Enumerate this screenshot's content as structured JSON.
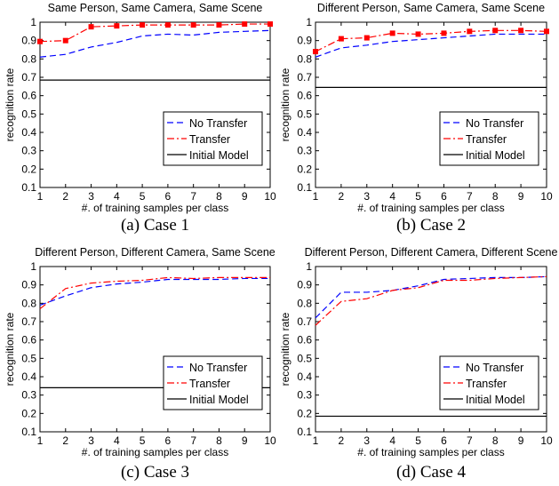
{
  "colors": {
    "no_transfer": "#0000ff",
    "transfer": "#ff0000",
    "initial_model": "#000000",
    "axis": "#000000"
  },
  "chart_data": [
    {
      "type": "line",
      "title": "Same Person, Same Camera, Same Scene",
      "caption": "(a)  Case 1",
      "xlabel": "#. of training samples per class",
      "ylabel": "recognition rate",
      "xlim": [
        1,
        10
      ],
      "ylim": [
        0.1,
        1
      ],
      "x": [
        1,
        2,
        3,
        4,
        5,
        6,
        7,
        8,
        9,
        10
      ],
      "xticks": [
        "1",
        "2",
        "3",
        "4",
        "5",
        "6",
        "7",
        "8",
        "9",
        "10"
      ],
      "yticks": [
        "0.1",
        "0.2",
        "0.3",
        "0.4",
        "0.5",
        "0.6",
        "0.7",
        "0.8",
        "0.9",
        "1"
      ],
      "grid": false,
      "legend_position": "lower-right",
      "series": [
        {
          "name": "No Transfer",
          "key": "no_transfer",
          "values": [
            0.81,
            0.825,
            0.865,
            0.89,
            0.925,
            0.935,
            0.93,
            0.945,
            0.95,
            0.955
          ]
        },
        {
          "name": "Transfer",
          "key": "transfer",
          "values": [
            0.895,
            0.9,
            0.975,
            0.98,
            0.985,
            0.985,
            0.985,
            0.985,
            0.99,
            0.99
          ]
        },
        {
          "name": "Initial Model",
          "key": "initial_model",
          "values": [
            0.685,
            0.685,
            0.685,
            0.685,
            0.685,
            0.685,
            0.685,
            0.685,
            0.685,
            0.685
          ]
        }
      ]
    },
    {
      "type": "line",
      "title": "Different Person, Same Camera, Same Scene",
      "caption": "(b)  Case 2",
      "xlabel": "#. of training samples per class",
      "ylabel": "recognition rate",
      "xlim": [
        1,
        10
      ],
      "ylim": [
        0.1,
        1
      ],
      "x": [
        1,
        2,
        3,
        4,
        5,
        6,
        7,
        8,
        9,
        10
      ],
      "xticks": [
        "1",
        "2",
        "3",
        "4",
        "5",
        "6",
        "7",
        "8",
        "9",
        "10"
      ],
      "yticks": [
        "0.1",
        "0.2",
        "0.3",
        "0.4",
        "0.5",
        "0.6",
        "0.7",
        "0.8",
        "0.9",
        "1"
      ],
      "grid": false,
      "legend_position": "lower-right",
      "series": [
        {
          "name": "No Transfer",
          "key": "no_transfer",
          "values": [
            0.81,
            0.86,
            0.875,
            0.895,
            0.905,
            0.915,
            0.925,
            0.935,
            0.935,
            0.935
          ]
        },
        {
          "name": "Transfer",
          "key": "transfer",
          "values": [
            0.84,
            0.91,
            0.915,
            0.94,
            0.935,
            0.94,
            0.95,
            0.955,
            0.955,
            0.95
          ]
        },
        {
          "name": "Initial Model",
          "key": "initial_model",
          "values": [
            0.645,
            0.645,
            0.645,
            0.645,
            0.645,
            0.645,
            0.645,
            0.645,
            0.645,
            0.645
          ]
        }
      ]
    },
    {
      "type": "line",
      "title": "Different Person, Different Camera, Same Scene",
      "caption": "(c)  Case 3",
      "xlabel": "#. of training samples per class",
      "ylabel": "recognition rate",
      "xlim": [
        1,
        10
      ],
      "ylim": [
        0.1,
        1
      ],
      "x": [
        1,
        2,
        3,
        4,
        5,
        6,
        7,
        8,
        9,
        10
      ],
      "xticks": [
        "1",
        "2",
        "3",
        "4",
        "5",
        "6",
        "7",
        "8",
        "9",
        "10"
      ],
      "yticks": [
        "0.1",
        "0.2",
        "0.3",
        "0.4",
        "0.5",
        "0.6",
        "0.7",
        "0.8",
        "0.9",
        "1"
      ],
      "grid": false,
      "legend_position": "lower-right",
      "series": [
        {
          "name": "No Transfer",
          "key": "no_transfer",
          "values": [
            0.79,
            0.84,
            0.885,
            0.905,
            0.915,
            0.93,
            0.93,
            0.93,
            0.935,
            0.935
          ]
        },
        {
          "name": "Transfer",
          "key": "transfer",
          "values": [
            0.77,
            0.88,
            0.91,
            0.92,
            0.925,
            0.94,
            0.935,
            0.94,
            0.94,
            0.94
          ]
        },
        {
          "name": "Initial Model",
          "key": "initial_model",
          "values": [
            0.34,
            0.34,
            0.34,
            0.34,
            0.34,
            0.34,
            0.34,
            0.34,
            0.34,
            0.34
          ]
        }
      ]
    },
    {
      "type": "line",
      "title": "Different Person, Different Camera, Different Scene",
      "caption": "(d)  Case 4",
      "xlabel": "#. of training samples per class",
      "ylabel": "recognition rate",
      "xlim": [
        1,
        10
      ],
      "ylim": [
        0.1,
        1
      ],
      "x": [
        1,
        2,
        3,
        4,
        5,
        6,
        7,
        8,
        9,
        10
      ],
      "xticks": [
        "1",
        "2",
        "3",
        "4",
        "5",
        "6",
        "7",
        "8",
        "9",
        "10"
      ],
      "yticks": [
        "0.1",
        "0.2",
        "0.3",
        "0.4",
        "0.5",
        "0.6",
        "0.7",
        "0.8",
        "0.9",
        "1"
      ],
      "grid": false,
      "legend_position": "lower-right",
      "series": [
        {
          "name": "No Transfer",
          "key": "no_transfer",
          "values": [
            0.72,
            0.86,
            0.86,
            0.87,
            0.895,
            0.93,
            0.935,
            0.94,
            0.94,
            0.945
          ]
        },
        {
          "name": "Transfer",
          "key": "transfer",
          "values": [
            0.68,
            0.81,
            0.825,
            0.87,
            0.885,
            0.925,
            0.925,
            0.935,
            0.94,
            0.945
          ]
        },
        {
          "name": "Initial Model",
          "key": "initial_model",
          "values": [
            0.185,
            0.185,
            0.185,
            0.185,
            0.185,
            0.185,
            0.185,
            0.185,
            0.185,
            0.185
          ]
        }
      ]
    }
  ]
}
